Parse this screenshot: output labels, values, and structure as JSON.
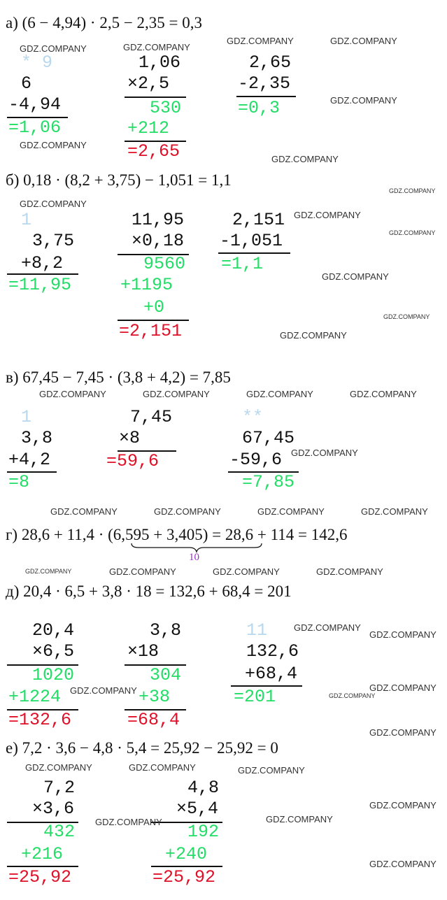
{
  "watermark": "GDZ.COMPANY",
  "colors": {
    "black": "#111111",
    "green": "#22dd66",
    "red": "#e01028",
    "carry": "#b8d8ee",
    "brace_label": "#9b30c8"
  },
  "sections": [
    {
      "equation": "а) (6 − 4,94) · 2,5 − 2,35 = 0,3",
      "rows": [
        {
          "text": "* 9",
          "color": "carry"
        },
        {
          "text": "6",
          "color": "black"
        },
        {
          "text": "-4,94",
          "color": "black"
        },
        {
          "text": "=1,06",
          "color": "green"
        },
        {
          "text": "1,06",
          "color": "black"
        },
        {
          "text": "×2,5",
          "color": "black"
        },
        {
          "text": "530",
          "color": "green"
        },
        {
          "text": "+212",
          "color": "green"
        },
        {
          "text": "=2,65",
          "color": "red"
        },
        {
          "text": "2,65",
          "color": "black"
        },
        {
          "text": "-2,35",
          "color": "black"
        },
        {
          "text": "=0,3",
          "color": "green"
        }
      ]
    },
    {
      "equation": "б) 0,18 · (8,2 + 3,75) − 1,051 = 1,1",
      "rows": [
        {
          "text": "1",
          "color": "carry"
        },
        {
          "text": "3,75",
          "color": "black"
        },
        {
          "text": "+8,2",
          "color": "black"
        },
        {
          "text": "=11,95",
          "color": "green"
        },
        {
          "text": "11,95",
          "color": "black"
        },
        {
          "text": "×0,18",
          "color": "black"
        },
        {
          "text": "9560",
          "color": "green"
        },
        {
          "text": "+1195",
          "color": "green"
        },
        {
          "text": "+0",
          "color": "green"
        },
        {
          "text": "=2,151",
          "color": "red"
        },
        {
          "text": "2,151",
          "color": "black"
        },
        {
          "text": "-1,051",
          "color": "black"
        },
        {
          "text": "=1,1",
          "color": "green"
        }
      ]
    },
    {
      "equation": "в) 67,45 − 7,45 · (3,8 + 4,2) = 7,85",
      "rows": [
        {
          "text": "1",
          "color": "carry"
        },
        {
          "text": "3,8",
          "color": "black"
        },
        {
          "text": "+4,2",
          "color": "black"
        },
        {
          "text": "=8",
          "color": "green"
        },
        {
          "text": "7,45",
          "color": "black"
        },
        {
          "text": "×8",
          "color": "black"
        },
        {
          "text": "=59,6",
          "color": "red"
        },
        {
          "text": "**",
          "color": "carry"
        },
        {
          "text": "67,45",
          "color": "black"
        },
        {
          "text": "-59,6",
          "color": "black"
        },
        {
          "text": "=7,85",
          "color": "green"
        }
      ]
    },
    {
      "equation": "г) 28,6 + 11,4 · (6,595 + 3,405) = 28,6 + 114 = 142,6",
      "brace_label": "10",
      "rows": []
    },
    {
      "equation": "д) 20,4 · 6,5 + 3,8 · 18 = 132,6 + 68,4 = 201",
      "rows": [
        {
          "text": "20,4",
          "color": "black"
        },
        {
          "text": "×6,5",
          "color": "black"
        },
        {
          "text": "1020",
          "color": "green"
        },
        {
          "text": "+1224",
          "color": "green"
        },
        {
          "text": "=132,6",
          "color": "red"
        },
        {
          "text": "3,8",
          "color": "black"
        },
        {
          "text": "×18",
          "color": "black"
        },
        {
          "text": "304",
          "color": "green"
        },
        {
          "text": "+38",
          "color": "green"
        },
        {
          "text": "=68,4",
          "color": "red"
        },
        {
          "text": "11",
          "color": "carry"
        },
        {
          "text": "132,6",
          "color": "black"
        },
        {
          "text": "+68,4",
          "color": "black"
        },
        {
          "text": "=201",
          "color": "green"
        }
      ]
    },
    {
      "equation": "е) 7,2 · 3,6 − 4,8 · 5,4 = 25,92 − 25,92 = 0",
      "rows": [
        {
          "text": "7,2",
          "color": "black"
        },
        {
          "text": "×3,6",
          "color": "black"
        },
        {
          "text": "432",
          "color": "green"
        },
        {
          "text": "+216",
          "color": "green"
        },
        {
          "text": "=25,92",
          "color": "red"
        },
        {
          "text": "4,8",
          "color": "black"
        },
        {
          "text": "×5,4",
          "color": "black"
        },
        {
          "text": "192",
          "color": "green"
        },
        {
          "text": "+240",
          "color": "green"
        },
        {
          "text": "=25,92",
          "color": "red"
        }
      ]
    }
  ]
}
